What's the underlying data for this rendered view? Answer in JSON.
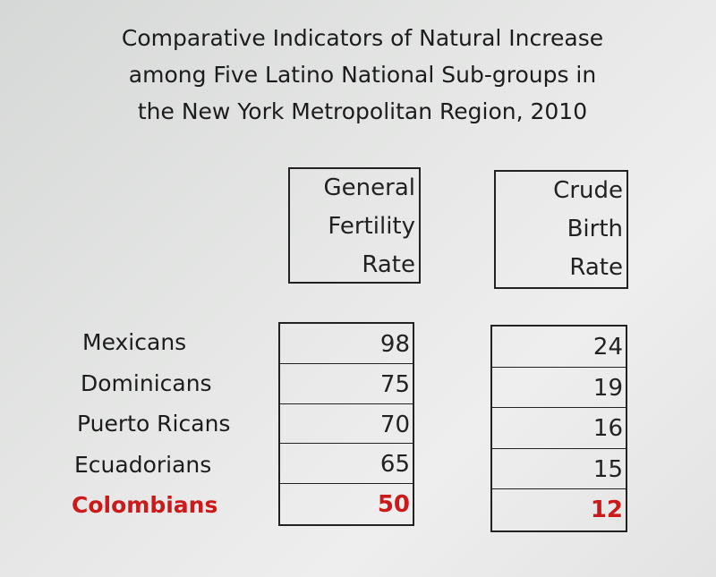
{
  "chart_data": {
    "type": "table",
    "title_lines": [
      "Comparative Indicators of Natural Increase",
      "among Five Latino National Sub-groups in",
      "the New York Metropolitan Region, 2010"
    ],
    "columns": [
      {
        "header_lines": [
          "General",
          "Fertility",
          "Rate"
        ],
        "values": [
          98,
          75,
          70,
          65,
          50
        ]
      },
      {
        "header_lines": [
          "Crude",
          "Birth",
          "Rate"
        ],
        "values": [
          24,
          19,
          16,
          15,
          12
        ]
      }
    ],
    "rows": [
      "Mexicans",
      "Dominicans",
      "Puerto Ricans",
      "Ecuadorians",
      "Colombians"
    ],
    "highlight_row": "Colombians",
    "highlight_color": "#cc1a1a"
  }
}
